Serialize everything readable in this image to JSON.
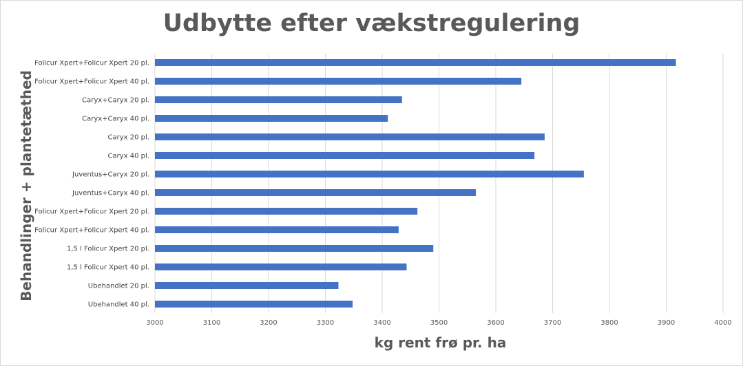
{
  "chart_data": {
    "type": "bar",
    "orientation": "horizontal",
    "title": "Udbytte efter vækstregulering",
    "xlabel": "kg rent frø pr. ha",
    "ylabel": "Behandlinger + plantetæthed",
    "xlim": [
      3000,
      4000
    ],
    "xticks": [
      "3000",
      "3100",
      "3200",
      "3300",
      "3400",
      "3500",
      "3600",
      "3700",
      "3800",
      "3900",
      "4000"
    ],
    "grid": true,
    "legend": "none",
    "bar_color": "#4472c4",
    "categories": [
      "Folicur Xpert+Folicur Xpert 20 pl.",
      "Folicur Xpert+Folicur Xpert 40 pl.",
      "Caryx+Caryx 20 pl.",
      "Caryx+Caryx 40 pl.",
      "Caryx 20 pl.",
      "Caryx 40 pl.",
      "Juventus+Caryx 20 pl.",
      "Juventus+Caryx 40 pl.",
      "Folicur Xpert+Folicur Xpert 20 pl.",
      "Folicur Xpert+Folicur Xpert 40 pl.",
      "1,5 l Folicur Xpert 20 pl.",
      "1,5 l Folicur Xpert 40 pl.",
      "Ubehandlet 20 pl.",
      "Ubehandlet 40 pl."
    ],
    "values": [
      3917,
      3645,
      3435,
      3410,
      3686,
      3668,
      3755,
      3565,
      3462,
      3429,
      3490,
      3443,
      3323,
      3348
    ]
  }
}
